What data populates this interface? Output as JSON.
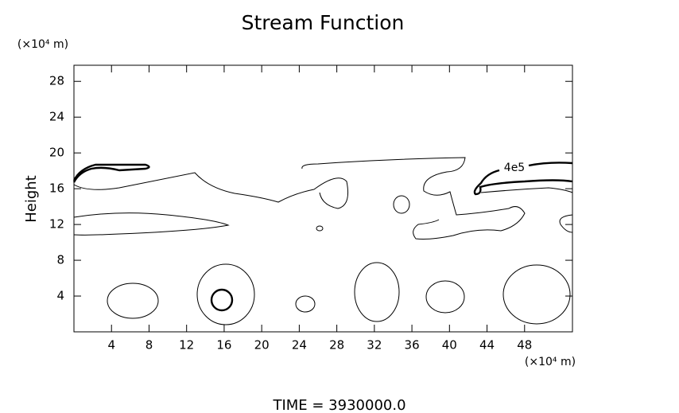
{
  "chart_data": {
    "type": "contour",
    "title": "Stream Function",
    "y_label": "Height",
    "y_unit": "(×10⁴ m)",
    "x_unit": "(×10⁴ m)",
    "xlim": [
      0,
      53.1
    ],
    "ylim": [
      0,
      29.8
    ],
    "xticks": [
      4,
      8,
      12,
      16,
      20,
      24,
      28,
      32,
      36,
      40,
      44,
      48
    ],
    "yticks": [
      4,
      8,
      12,
      16,
      20,
      24,
      28
    ],
    "contour_label": "4e5",
    "footer": "TIME = 3930000.0"
  }
}
